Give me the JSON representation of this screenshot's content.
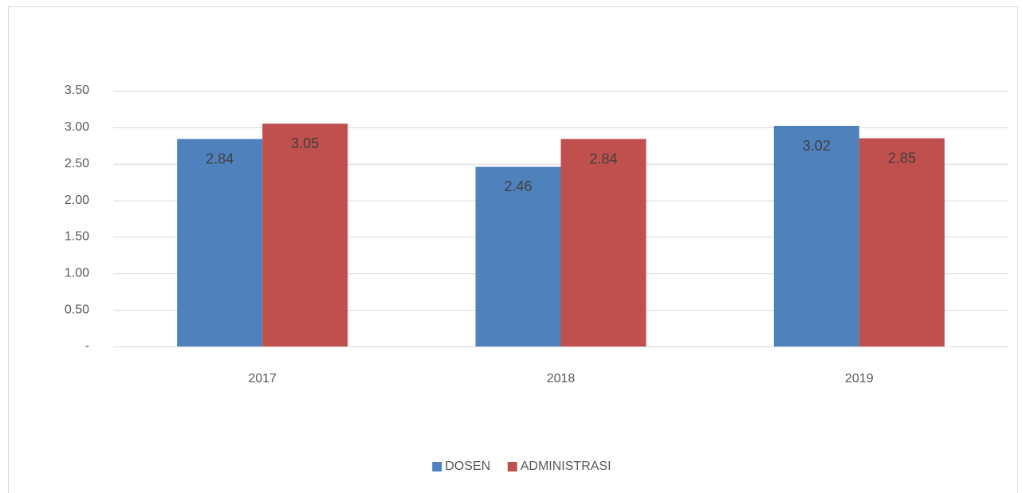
{
  "chart_data": {
    "type": "bar",
    "categories": [
      "2017",
      "2018",
      "2019"
    ],
    "series": [
      {
        "name": "DOSEN",
        "color": "#4f81bd",
        "values": [
          2.84,
          2.46,
          3.02
        ]
      },
      {
        "name": "ADMINISTRASI",
        "color": "#c0504d",
        "values": [
          3.05,
          2.84,
          2.85
        ]
      }
    ],
    "ylim": [
      0,
      3.5
    ],
    "yticks": [
      {
        "value": 0,
        "label": "-"
      },
      {
        "value": 0.5,
        "label": "0.50"
      },
      {
        "value": 1,
        "label": "1.00"
      },
      {
        "value": 1.5,
        "label": "1.50"
      },
      {
        "value": 2,
        "label": "2.00"
      },
      {
        "value": 2.5,
        "label": "2.50"
      },
      {
        "value": 3,
        "label": "3.00"
      },
      {
        "value": 3.5,
        "label": "3.50"
      }
    ],
    "grid": true,
    "legend": "bottom"
  }
}
